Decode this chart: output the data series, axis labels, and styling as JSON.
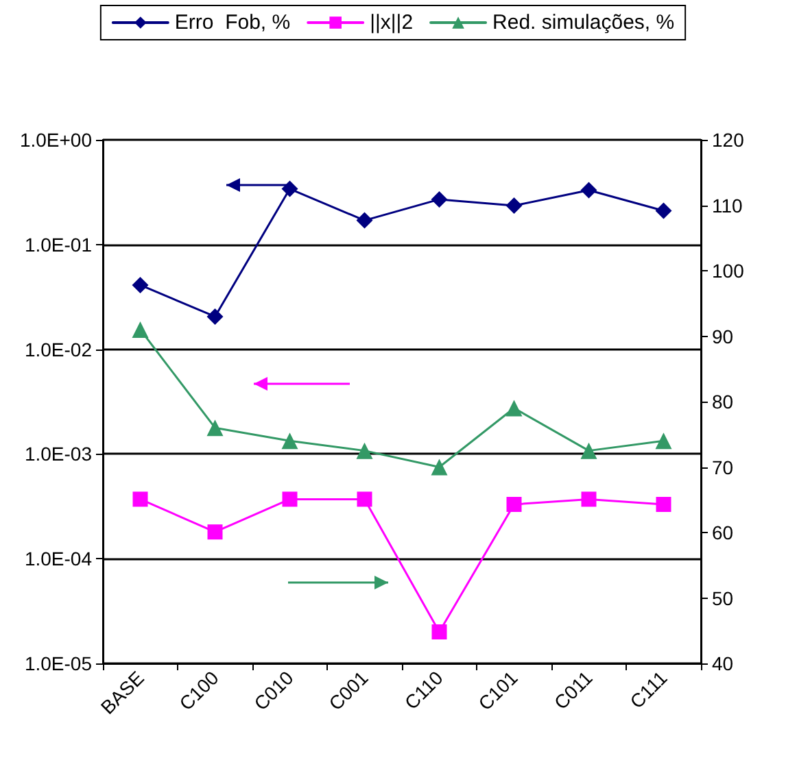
{
  "chart_data": {
    "type": "line",
    "categories": [
      "BASE",
      "C100",
      "C010",
      "C001",
      "C110",
      "C101",
      "C011",
      "C111"
    ],
    "series": [
      {
        "name": "Erro  Fob, %",
        "color": "#000080",
        "marker": "diamond",
        "values": [
          0.041,
          0.0205,
          0.34,
          0.17,
          0.27,
          0.235,
          0.33,
          0.21
        ]
      },
      {
        "name": "||x||2",
        "color": "#ff00ff",
        "marker": "square",
        "values": [
          0.00037,
          0.00018,
          0.00037,
          0.00037,
          2e-05,
          0.00033,
          0.00037,
          0.00033
        ]
      },
      {
        "name": "Red. simulações, %",
        "color": "#339966",
        "marker": "triangle",
        "axis": "y2",
        "values": [
          91,
          76,
          74,
          72.5,
          70,
          79,
          72.5,
          74
        ]
      }
    ],
    "log": "y",
    "ylim": [
      1e-05,
      1
    ],
    "yticks": [
      {
        "value": 1e-05,
        "label": "1.0E-05"
      },
      {
        "value": 0.0001,
        "label": "1.0E-04"
      },
      {
        "value": 0.001,
        "label": "1.0E-03"
      },
      {
        "value": 0.01,
        "label": "1.0E-02"
      },
      {
        "value": 0.1,
        "label": "1.0E-01"
      },
      {
        "value": 1,
        "label": "1.0E+00"
      }
    ],
    "y2lim": [
      40,
      120
    ],
    "y2ticks": [
      40,
      50,
      60,
      70,
      80,
      90,
      100,
      110,
      120
    ],
    "grid": "y",
    "legend": "top",
    "line_style": "solid"
  }
}
